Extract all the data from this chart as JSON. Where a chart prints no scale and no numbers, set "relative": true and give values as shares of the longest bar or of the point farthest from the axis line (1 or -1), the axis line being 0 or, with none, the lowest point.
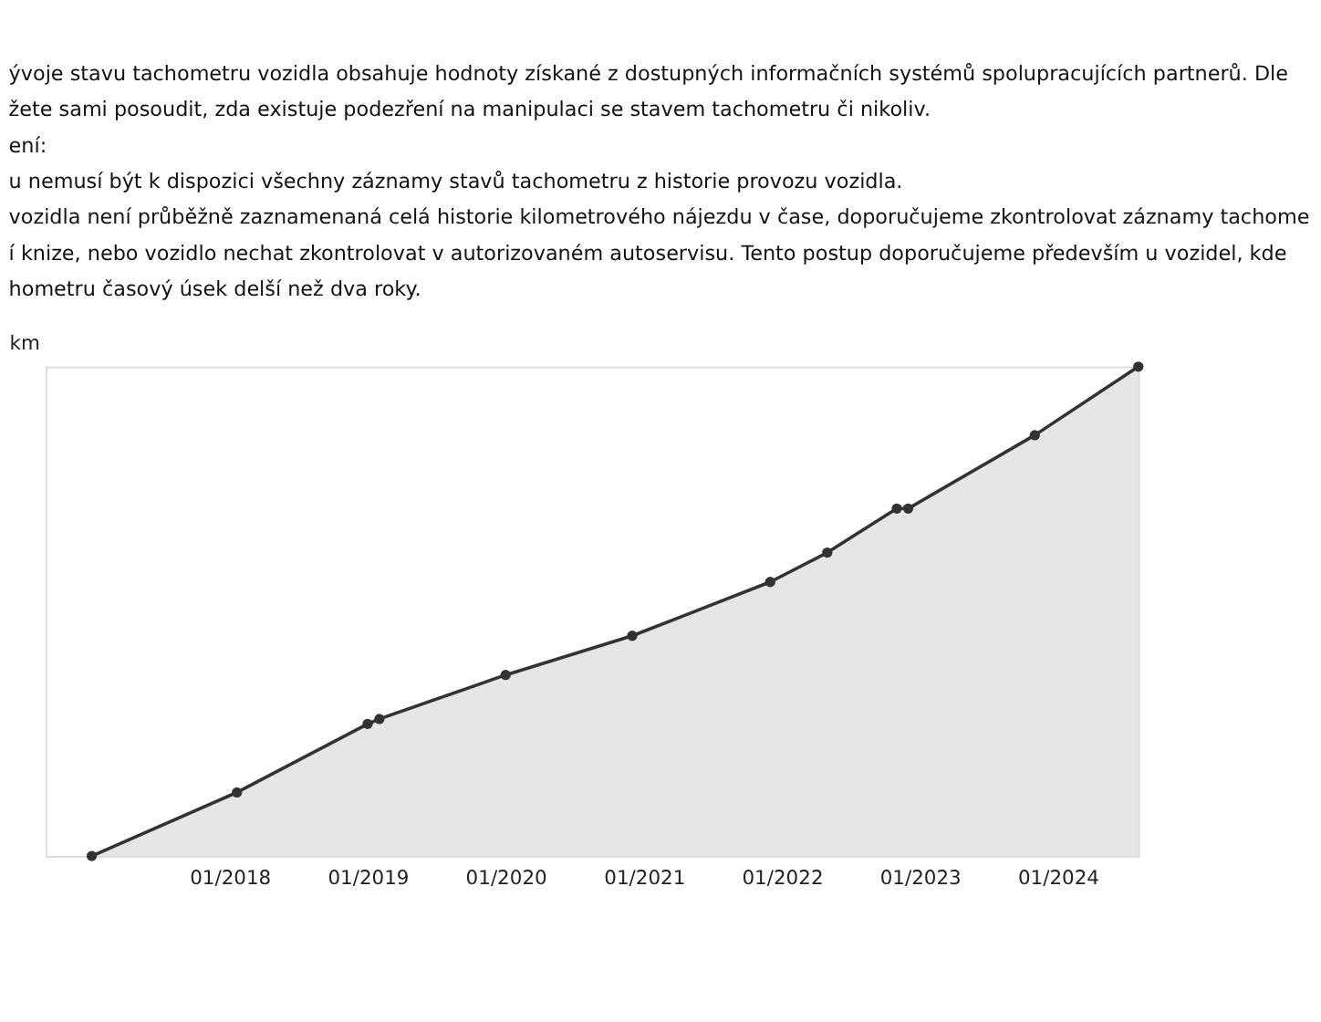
{
  "chart_data": {
    "type": "area",
    "relative": true,
    "color": "#333333",
    "annotations": [
      "ývoje stavu tachometru vozidla obsahuje hodnoty získané z dostupných informačních systémů spolupracujících partnerů. Dle",
      "žete sami posoudit, zda existuje podezření na manipulaci se stavem tachometru či nikoliv.",
      "ení:",
      "u nemusí být k dispozici všechny záznamy stavů tachometru z historie provozu vozidla.",
      "vozidla není průběžně zaznamenaná celá historie kilometrového nájezdu v čase, doporučujeme zkontrolovat záznamy tachome",
      "í knize, nebo vozidlo nechat zkontrolovat v autorizovaném autoservisu. Tento postup doporučujeme především u vozidel, kde",
      "hometru časový úsek delší než dva roky."
    ],
    "x": [
      "2017-01",
      "2018-01-20",
      "2019-01",
      "2019-02",
      "2020-01",
      "2020-12",
      "2021-12",
      "2022-05",
      "2022-11",
      "2022-12",
      "2023-11",
      "2024-08"
    ],
    "values": [
      0,
      0.13,
      0.27,
      0.28,
      0.37,
      0.45,
      0.56,
      0.62,
      0.71,
      0.71,
      0.86,
      1
    ],
    "xlim": [
      "2016-09",
      "2024-08"
    ],
    "xticks": [
      {
        "value": "2018-01",
        "label": "01/2018"
      },
      {
        "value": "2019-01",
        "label": "01/2019"
      },
      {
        "value": "2020-01",
        "label": "01/2020"
      },
      {
        "value": "2021-01",
        "label": "01/2021"
      },
      {
        "value": "2022-01",
        "label": "01/2022"
      },
      {
        "value": "2023-01",
        "label": "01/2023"
      },
      {
        "value": "2024-01",
        "label": "01/2024"
      }
    ],
    "ylabel": "km",
    "marker": "circle",
    "line_style": "solid"
  }
}
